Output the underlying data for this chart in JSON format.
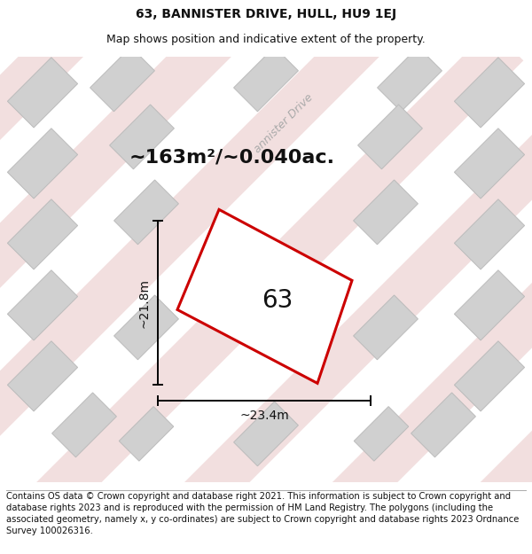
{
  "title": "63, BANNISTER DRIVE, HULL, HU9 1EJ",
  "subtitle": "Map shows position and indicative extent of the property.",
  "area_label": "~163m²/~0.040ac.",
  "number_label": "63",
  "width_label": "~23.4m",
  "height_label": "~21.8m",
  "road_label": "annister Drive",
  "footer": "Contains OS data © Crown copyright and database right 2021. This information is subject to Crown copyright and database rights 2023 and is reproduced with the permission of HM Land Registry. The polygons (including the associated geometry, namely x, y co-ordinates) are subject to Crown copyright and database rights 2023 Ordnance Survey 100026316.",
  "bg_color": "#e8e8e8",
  "map_bg": "#e0e0e0",
  "plot_color": "#cc0000",
  "plot_fill": "#ffffff",
  "building_fill": "#d0d0d0",
  "building_edge": "#bbbbbb",
  "road_fill": "#f0dada",
  "road_edge": "#e8c8c8",
  "title_fontsize": 10,
  "subtitle_fontsize": 9,
  "area_fontsize": 16,
  "number_fontsize": 20,
  "dim_fontsize": 10,
  "road_label_fontsize": 9,
  "footer_fontsize": 7.2
}
